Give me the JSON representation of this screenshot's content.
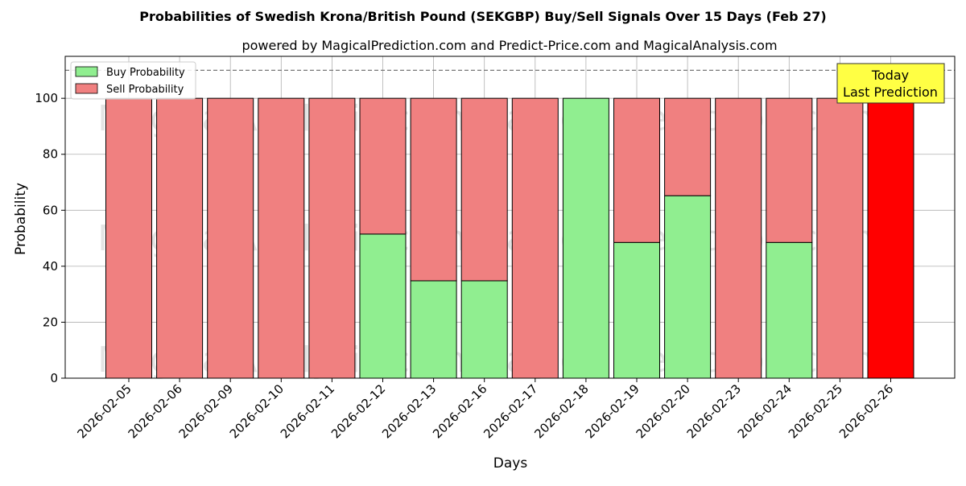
{
  "chart_data": {
    "type": "bar",
    "stacked": true,
    "title": "Probabilities of Swedish Krona/British Pound (SEKGBP) Buy/Sell Signals Over 15 Days (Feb 27)",
    "subtitle": "powered by MagicalPrediction.com and Predict-Price.com and MagicalAnalysis.com",
    "xlabel": "Days",
    "ylabel": "Probability",
    "ylim": [
      0,
      115
    ],
    "yticks": [
      0,
      20,
      40,
      60,
      80,
      100
    ],
    "grid": true,
    "reference_line": 110,
    "legend_position": "top-left",
    "categories": [
      "2026-02-05",
      "2026-02-06",
      "2026-02-09",
      "2026-02-10",
      "2026-02-11",
      "2026-02-12",
      "2026-02-13",
      "2026-02-16",
      "2026-02-17",
      "2026-02-18",
      "2026-02-19",
      "2026-02-20",
      "2026-02-23",
      "2026-02-24",
      "2026-02-25",
      "2026-02-26"
    ],
    "series": [
      {
        "name": "Buy Probability",
        "color": "#90ee90",
        "values": [
          0,
          0,
          0,
          0,
          0,
          51.5,
          34.8,
          34.8,
          0,
          100,
          48.5,
          65.2,
          0,
          48.5,
          0,
          0
        ]
      },
      {
        "name": "Sell Probability",
        "color": "#f08080",
        "values": [
          100,
          100,
          100,
          100,
          100,
          48.5,
          65.2,
          65.2,
          100,
          0,
          51.5,
          34.8,
          100,
          51.5,
          100,
          100
        ]
      }
    ],
    "highlight": {
      "index": 15,
      "color": "#ff0000"
    },
    "annotation": {
      "lines": [
        "Today",
        "Last Prediction"
      ],
      "background": "#ffff44"
    },
    "watermark": "MagicalAnalysis.com    MagicalPrediction.com"
  }
}
